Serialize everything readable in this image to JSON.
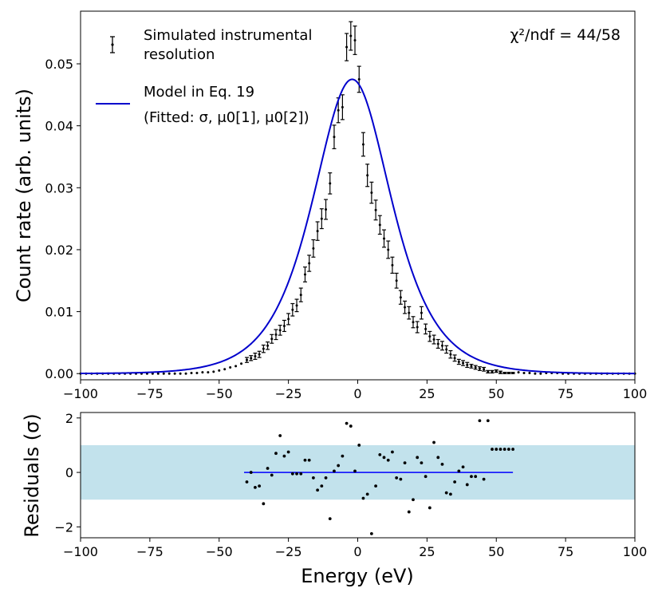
{
  "chart_data": [
    {
      "type": "scatter",
      "panel": "main",
      "xlim": [
        -100,
        100
      ],
      "ylim": [
        -0.001,
        0.0585
      ],
      "xticks": [
        "−100",
        "−75",
        "−50",
        "−25",
        "0",
        "25",
        "50",
        "75",
        "100"
      ],
      "xtick_values": [
        -100,
        -75,
        -50,
        -25,
        0,
        25,
        50,
        75,
        100
      ],
      "yticks": [
        "0.00",
        "0.01",
        "0.02",
        "0.03",
        "0.04",
        "0.05"
      ],
      "ytick_values": [
        0,
        0.01,
        0.02,
        0.03,
        0.04,
        0.05
      ],
      "ylabel": "Count rate (arb. units)",
      "xlabel": "",
      "annotation": "χ²/ndf = 44/58",
      "series": [
        {
          "name": "Simulated instrumental resolution",
          "name_line1": "Simulated instrumental",
          "name_line2": "resolution",
          "style": "errorbar",
          "x": [
            -40,
            -38.5,
            -37,
            -35.5,
            -34,
            -32.5,
            -31,
            -29.5,
            -28,
            -26.5,
            -25,
            -23.5,
            -22,
            -20.5,
            -19,
            -17.5,
            -16,
            -14.5,
            -13,
            -11.5,
            -10,
            -8.5,
            -7,
            -5.5,
            -4,
            -2.5,
            -1,
            0.5,
            2,
            3.5,
            5,
            6.5,
            8,
            9.5,
            11,
            12.5,
            14,
            15.5,
            17,
            18.5,
            20,
            21.5,
            23,
            24.5,
            26,
            27.5,
            29,
            30.5,
            32,
            33.5,
            35,
            36.5,
            38,
            39.5,
            41,
            42.5,
            44,
            45.5,
            47,
            48.5,
            50,
            51.5,
            53,
            54.5,
            56
          ],
          "y": [
            0.0022,
            0.0025,
            0.0028,
            0.0031,
            0.004,
            0.0045,
            0.0056,
            0.0063,
            0.007,
            0.0077,
            0.0088,
            0.0103,
            0.011,
            0.0127,
            0.016,
            0.0178,
            0.0202,
            0.023,
            0.025,
            0.0265,
            0.0307,
            0.0382,
            0.0425,
            0.043,
            0.0527,
            0.0545,
            0.0538,
            0.0475,
            0.037,
            0.032,
            0.0292,
            0.0264,
            0.024,
            0.0218,
            0.02,
            0.0175,
            0.015,
            0.0123,
            0.0107,
            0.0098,
            0.0083,
            0.0075,
            0.0098,
            0.0072,
            0.006,
            0.0055,
            0.0048,
            0.0045,
            0.0039,
            0.0031,
            0.0025,
            0.0019,
            0.0017,
            0.0014,
            0.0012,
            0.001,
            0.0008,
            0.0007,
            0.0003,
            0.0003,
            0.0004,
            0.0002,
            0.0001,
            0.0001,
            0.0001
          ],
          "yerr": [
            0.0004,
            0.0004,
            0.0005,
            0.0005,
            0.0006,
            0.0006,
            0.0007,
            0.0008,
            0.0008,
            0.0009,
            0.0009,
            0.001,
            0.001,
            0.0011,
            0.0012,
            0.0013,
            0.0014,
            0.0015,
            0.0016,
            0.0016,
            0.0017,
            0.0019,
            0.002,
            0.002,
            0.0022,
            0.0023,
            0.0023,
            0.0021,
            0.0019,
            0.0018,
            0.0017,
            0.0016,
            0.0015,
            0.0014,
            0.0014,
            0.0013,
            0.0012,
            0.0011,
            0.001,
            0.001,
            0.0009,
            0.0009,
            0.001,
            0.0008,
            0.0008,
            0.0007,
            0.0007,
            0.0007,
            0.0006,
            0.0006,
            0.0005,
            0.0004,
            0.0004,
            0.0004,
            0.0003,
            0.0003,
            0.0003,
            0.0003,
            0.0002,
            0.0002,
            0.0002,
            0.0002,
            0.0001,
            0.0001,
            0.0001
          ]
        },
        {
          "name": "Model in Eq. 19",
          "subtitle": "(Fitted: σ, μ0[1], μ0[2])",
          "style": "line",
          "color": "#0000cc",
          "center": -2,
          "peak": 0.0475,
          "x_start": -100,
          "x_end": 100
        },
        {
          "name": "zero-level points",
          "style": "dots",
          "x": [
            -100,
            -98,
            -96,
            -94,
            -92,
            -90,
            -88,
            -86,
            -84,
            -82,
            -80,
            -78,
            -76,
            -74,
            -72,
            -70,
            -68,
            -66,
            -64,
            -62,
            -60,
            -58,
            -56,
            -54,
            -52,
            -50,
            -48,
            -46,
            -44,
            -42,
            58,
            60,
            62,
            64,
            66,
            68,
            70,
            72,
            74,
            76,
            78,
            80,
            82,
            84,
            86,
            88,
            90,
            92,
            94,
            96,
            98,
            100
          ],
          "y": [
            0,
            0,
            0,
            0,
            0,
            0,
            0,
            0,
            0,
            0,
            0,
            0,
            0,
            0,
            0,
            0,
            0,
            0,
            0,
            0,
            0.0001,
            0.0001,
            0.0002,
            0.0002,
            0.0003,
            0.0005,
            0.0007,
            0.001,
            0.0012,
            0.0016,
            0.0002,
            0.0001,
            0.0001,
            0,
            0,
            0.0001,
            0.0001,
            0.0001,
            0,
            0,
            0,
            0,
            0,
            0,
            0,
            0,
            0,
            0,
            0,
            0,
            0,
            0
          ]
        }
      ]
    },
    {
      "type": "scatter",
      "panel": "residuals",
      "xlim": [
        -100,
        100
      ],
      "ylim": [
        -2.4,
        2.2
      ],
      "xticks": [
        "−100",
        "−75",
        "−50",
        "−25",
        "0",
        "25",
        "50",
        "75",
        "100"
      ],
      "xtick_values": [
        -100,
        -75,
        -50,
        -25,
        0,
        25,
        50,
        75,
        100
      ],
      "yticks": [
        "2",
        "0",
        "−2"
      ],
      "ytick_values": [
        2,
        0,
        -2
      ],
      "xlabel": "Energy (eV)",
      "ylabel": "Residuals (σ)",
      "band": {
        "from": -1,
        "to": 1,
        "color": "#add8e6"
      },
      "zero_line": {
        "from_x": -41,
        "to_x": 56,
        "color": "#0000ff"
      },
      "x": [
        -40,
        -38.5,
        -37,
        -35.5,
        -34,
        -32.5,
        -31,
        -29.5,
        -28,
        -26.5,
        -25,
        -23.5,
        -22,
        -20.5,
        -19,
        -17.5,
        -16,
        -14.5,
        -13,
        -11.5,
        -10,
        -8.5,
        -7,
        -5.5,
        -4,
        -2.5,
        -1,
        0.5,
        2,
        3.5,
        5,
        6.5,
        8,
        9.5,
        11,
        12.5,
        14,
        15.5,
        17,
        18.5,
        20,
        21.5,
        23,
        24.5,
        26,
        27.5,
        29,
        30.5,
        32,
        33.5,
        35,
        36.5,
        38,
        39.5,
        41,
        42.5,
        44,
        45.5,
        47,
        48.5,
        50,
        51.5,
        53,
        54.5,
        56
      ],
      "y": [
        -0.35,
        0,
        -0.55,
        -0.5,
        -1.15,
        0.15,
        -0.1,
        0.7,
        1.35,
        0.6,
        0.75,
        -0.05,
        -0.05,
        -0.05,
        0.45,
        0.45,
        -0.2,
        -0.65,
        -0.5,
        -0.2,
        -1.7,
        0.05,
        0.25,
        0.6,
        1.8,
        1.7,
        0.05,
        1.0,
        -0.95,
        -0.8,
        -2.25,
        -0.5,
        0.65,
        0.55,
        0.45,
        0.75,
        -0.2,
        -0.25,
        0.35,
        -1.45,
        -1.0,
        0.55,
        0.35,
        -0.15,
        -1.3,
        1.1,
        0.55,
        0.3,
        -0.75,
        -0.8,
        -0.35,
        0.05,
        0.2,
        -0.45,
        -0.15,
        -0.15,
        1.9,
        -0.25,
        1.9,
        0.85,
        0.85,
        0.85,
        0.85,
        0.85,
        0.85
      ]
    }
  ]
}
